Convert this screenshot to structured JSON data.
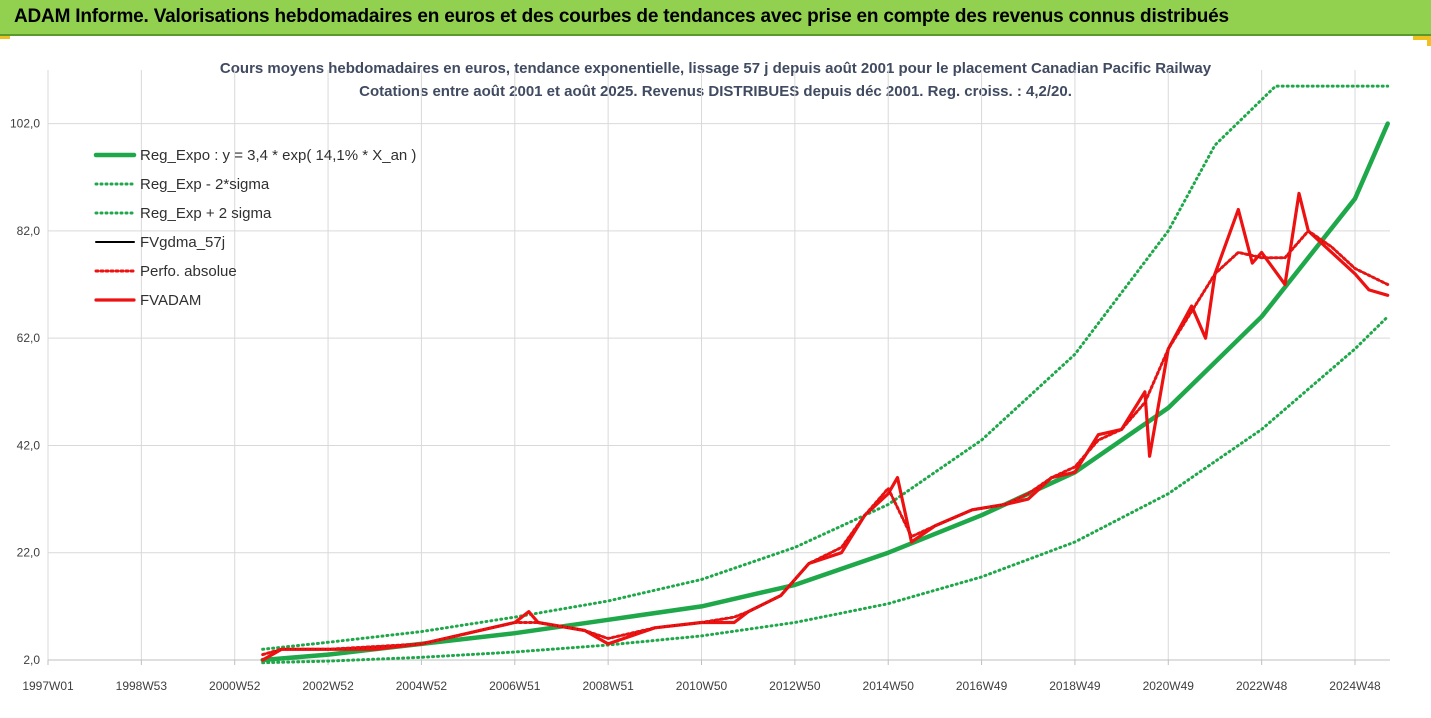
{
  "banner": {
    "title": "ADAM Informe. Valorisations hebdomadaires en euros et des courbes de tendances avec prise en compte des revenus connus distribués"
  },
  "colors": {
    "banner_bg": "#92d050",
    "trend": "#1fa84a",
    "band": "#1fa84a",
    "smooth": "#000000",
    "perf": "#ee1111",
    "fvadam": "#ee1111"
  },
  "chart_data": {
    "type": "line",
    "title": "Cours moyens hebdomadaires en euros, tendance exponentielle, lissage 57 j depuis août 2001 pour le placement Canadian Pacific Railway",
    "subtitle": "Cotations entre août 2001 et août 2025. Revenus DISTRIBUES depuis déc 2001. Reg. croiss. : 4,2/20.",
    "xlabel": "",
    "ylabel": "",
    "x_range": [
      1997.0,
      2025.75
    ],
    "ylim": [
      2.0,
      112.0
    ],
    "y_ticks": [
      2.0,
      22.0,
      42.0,
      62.0,
      82.0,
      102.0
    ],
    "y_tick_labels": [
      "2,0",
      "22,0",
      "42,0",
      "62,0",
      "82,0",
      "102,0"
    ],
    "x_ticks": [
      {
        "label": "1997W01",
        "year": 1997.0
      },
      {
        "label": "1998W53",
        "year": 1999.0
      },
      {
        "label": "2000W52",
        "year": 2001.0
      },
      {
        "label": "2002W52",
        "year": 2003.0
      },
      {
        "label": "2004W52",
        "year": 2005.0
      },
      {
        "label": "2006W51",
        "year": 2007.0
      },
      {
        "label": "2008W51",
        "year": 2009.0
      },
      {
        "label": "2010W50",
        "year": 2011.0
      },
      {
        "label": "2012W50",
        "year": 2013.0
      },
      {
        "label": "2014W50",
        "year": 2015.0
      },
      {
        "label": "2016W49",
        "year": 2017.0
      },
      {
        "label": "2018W49",
        "year": 2019.0
      },
      {
        "label": "2020W49",
        "year": 2021.0
      },
      {
        "label": "2022W48",
        "year": 2023.0
      },
      {
        "label": "2024W48",
        "year": 2025.0
      }
    ],
    "grid": true,
    "legend_position": "top-left",
    "series": [
      {
        "name": "Reg_Expo : y = 3,4 * exp( 14,1% *  X_an )",
        "style": "solid",
        "color": "#1fa84a",
        "x": [
          2001.6,
          2003.0,
          2005.0,
          2007.0,
          2009.0,
          2011.0,
          2013.0,
          2015.0,
          2017.0,
          2019.0,
          2021.0,
          2023.0,
          2025.0,
          2025.7
        ],
        "y": [
          2.0,
          3.0,
          5.0,
          7.0,
          9.5,
          12.0,
          16.0,
          22.0,
          29.0,
          37.0,
          49.0,
          66.0,
          88.0,
          102.0
        ]
      },
      {
        "name": "Reg_Exp - 2*sigma",
        "style": "dotted",
        "color": "#1fa84a",
        "x": [
          2001.6,
          2003.0,
          2005.0,
          2007.0,
          2009.0,
          2011.0,
          2013.0,
          2015.0,
          2017.0,
          2019.0,
          2021.0,
          2023.0,
          2025.0,
          2025.7
        ],
        "y": [
          1.5,
          1.8,
          2.5,
          3.5,
          4.8,
          6.5,
          9.0,
          12.5,
          17.5,
          24.0,
          33.0,
          45.0,
          60.0,
          66.0
        ]
      },
      {
        "name": "Reg_Exp + 2 sigma",
        "style": "dotted",
        "color": "#1fa84a",
        "x": [
          2001.6,
          2003.0,
          2005.0,
          2007.0,
          2009.0,
          2011.0,
          2013.0,
          2015.0,
          2017.0,
          2019.0,
          2021.0,
          2022.0,
          2023.3,
          2025.7
        ],
        "y": [
          4.0,
          5.3,
          7.3,
          10.0,
          13.0,
          17.0,
          23.0,
          31.0,
          43.0,
          59.0,
          82.0,
          98.0,
          109.0,
          109.0
        ]
      },
      {
        "name": "FVgdma_57j",
        "style": "solid",
        "color": "#000000",
        "x": [
          2001.6,
          2002.0,
          2003.0,
          2004.0,
          2005.0,
          2006.0,
          2006.5,
          2007.0,
          2007.5,
          2008.5,
          2009.0,
          2010.0,
          2011.0,
          2011.7,
          2012.0,
          2012.7,
          2013.3,
          2014.0,
          2014.5,
          2015.0,
          2015.5,
          2016.0,
          2016.8,
          2017.5,
          2018.0,
          2018.5,
          2019.0,
          2019.5,
          2020.0,
          2020.5,
          2021.0,
          2021.5,
          2022.0,
          2022.5,
          2023.0,
          2023.5,
          2024.0,
          2024.5,
          2025.0,
          2025.7
        ],
        "y": [
          3.0,
          4.0,
          4.0,
          4.5,
          5.0,
          7.0,
          8.0,
          9.0,
          9.0,
          7.5,
          6.0,
          8.0,
          9.0,
          10.0,
          11.0,
          14.0,
          20.0,
          23.0,
          29.0,
          34.0,
          25.0,
          27.0,
          30.0,
          31.0,
          33.0,
          36.0,
          38.0,
          43.0,
          45.0,
          50.0,
          60.0,
          67.0,
          74.0,
          78.0,
          77.0,
          77.0,
          82.0,
          79.0,
          75.0,
          72.0
        ]
      },
      {
        "name": "Perfo. absolue",
        "style": "dotted",
        "color": "#ee1111",
        "x": [
          2001.6,
          2002.0,
          2003.0,
          2004.0,
          2005.0,
          2006.0,
          2006.5,
          2007.0,
          2007.5,
          2008.5,
          2009.0,
          2010.0,
          2011.0,
          2011.7,
          2012.0,
          2012.7,
          2013.3,
          2014.0,
          2014.5,
          2015.0,
          2015.5,
          2016.0,
          2016.8,
          2017.5,
          2018.0,
          2018.5,
          2019.0,
          2019.5,
          2020.0,
          2020.5,
          2021.0,
          2021.5,
          2022.0,
          2022.5,
          2023.0,
          2023.5,
          2024.0,
          2024.5,
          2025.0,
          2025.7
        ],
        "y": [
          3.0,
          4.0,
          4.0,
          4.5,
          5.0,
          7.0,
          8.0,
          9.0,
          9.0,
          7.5,
          6.0,
          8.0,
          9.0,
          10.0,
          11.0,
          14.0,
          20.0,
          23.0,
          29.0,
          34.0,
          25.0,
          27.0,
          30.0,
          31.0,
          33.0,
          36.0,
          38.0,
          43.0,
          45.0,
          50.0,
          60.0,
          67.0,
          74.0,
          78.0,
          77.0,
          77.0,
          82.0,
          79.0,
          75.0,
          72.0
        ]
      },
      {
        "name": "FVADAM",
        "style": "solid",
        "color": "#ee1111",
        "x": [
          2001.6,
          2002.0,
          2003.0,
          2004.0,
          2005.0,
          2006.0,
          2006.5,
          2007.0,
          2007.3,
          2007.5,
          2008.5,
          2009.0,
          2010.0,
          2011.0,
          2011.7,
          2012.0,
          2012.7,
          2013.3,
          2014.0,
          2014.5,
          2015.0,
          2015.2,
          2015.5,
          2016.0,
          2016.8,
          2017.5,
          2018.0,
          2018.5,
          2019.0,
          2019.5,
          2020.0,
          2020.5,
          2020.6,
          2021.0,
          2021.5,
          2021.8,
          2022.0,
          2022.5,
          2022.8,
          2023.0,
          2023.5,
          2023.8,
          2024.0,
          2024.5,
          2025.0,
          2025.3,
          2025.7
        ],
        "y": [
          2.0,
          4.0,
          4.0,
          4.0,
          5.0,
          7.0,
          8.0,
          9.0,
          11.0,
          9.0,
          7.5,
          5.0,
          8.0,
          9.0,
          9.0,
          11.0,
          14.0,
          20.0,
          22.0,
          29.0,
          33.0,
          36.0,
          24.0,
          27.0,
          30.0,
          31.0,
          32.0,
          36.0,
          37.0,
          44.0,
          45.0,
          52.0,
          40.0,
          60.0,
          68.0,
          62.0,
          74.0,
          86.0,
          76.0,
          78.0,
          72.0,
          89.0,
          82.0,
          78.0,
          74.0,
          71.0,
          70.0
        ]
      }
    ]
  }
}
